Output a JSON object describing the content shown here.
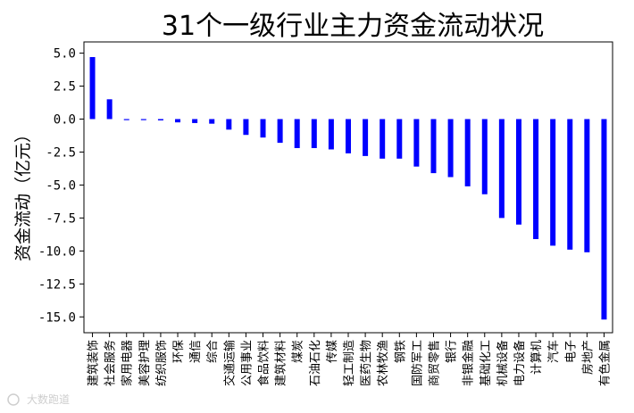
{
  "watermark": "大数跑道",
  "chart_data": {
    "type": "bar",
    "title": "31个一级行业主力资金流动状况",
    "xlabel": "",
    "ylabel": "资金流动（亿元）",
    "ylim": [
      -16.2,
      5.85
    ],
    "yticks": [
      "5.0",
      "2.5",
      "0.0",
      "-2.5",
      "-5.0",
      "-7.5",
      "-10.0",
      "-12.5",
      "-15.0"
    ],
    "ytick_values": [
      5.0,
      2.5,
      0.0,
      -2.5,
      -5.0,
      -7.5,
      -10.0,
      -12.5,
      -15.0
    ],
    "grid": false,
    "legend": "none",
    "bar_color": "#0000ff",
    "categories": [
      "建筑装饰",
      "社会服务",
      "家用电器",
      "美容护理",
      "纺织服饰",
      "环保",
      "通信",
      "综合",
      "交通运输",
      "公用事业",
      "食品饮料",
      "建筑材料",
      "煤炭",
      "石油石化",
      "传媒",
      "轻工制造",
      "医药生物",
      "农林牧渔",
      "钢铁",
      "国防军工",
      "商贸零售",
      "银行",
      "非银金融",
      "基础化工",
      "机械设备",
      "电力设备",
      "计算机",
      "汽车",
      "电子",
      "房地产",
      "有色金属"
    ],
    "values": [
      4.7,
      1.5,
      -0.05,
      -0.05,
      -0.1,
      -0.25,
      -0.3,
      -0.35,
      -0.8,
      -1.2,
      -1.4,
      -1.8,
      -2.2,
      -2.2,
      -2.3,
      -2.6,
      -2.8,
      -3.0,
      -3.0,
      -3.6,
      -4.1,
      -4.4,
      -5.1,
      -5.7,
      -7.5,
      -8.0,
      -9.1,
      -9.6,
      -9.9,
      -10.1,
      -15.2
    ]
  }
}
